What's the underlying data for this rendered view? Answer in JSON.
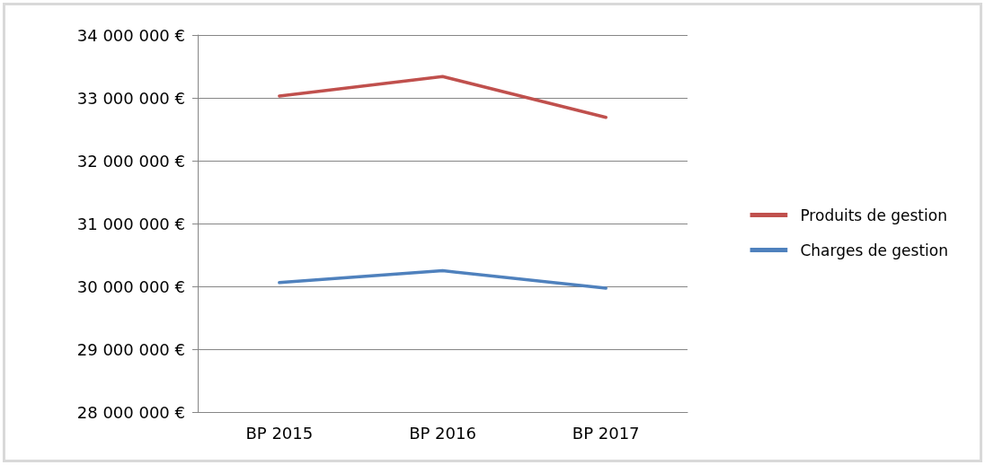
{
  "chart_data": {
    "type": "line",
    "categories": [
      "BP 2015",
      "BP 2016",
      "BP 2017"
    ],
    "series": [
      {
        "name": "Produits de gestion",
        "color": "#c0504d",
        "values": [
          33030000,
          33340000,
          32690000
        ]
      },
      {
        "name": "Charges de gestion",
        "color": "#4f81bd",
        "values": [
          30060000,
          30250000,
          29970000
        ]
      }
    ],
    "ylim": [
      28000000,
      34000000
    ],
    "yticks": [
      {
        "value": 28000000,
        "label": "28 000 000 €"
      },
      {
        "value": 29000000,
        "label": "29 000 000 €"
      },
      {
        "value": 30000000,
        "label": "30 000 000 €"
      },
      {
        "value": 31000000,
        "label": "31 000 000 €"
      },
      {
        "value": 32000000,
        "label": "32 000 000 €"
      },
      {
        "value": 33000000,
        "label": "33 000 000 €"
      },
      {
        "value": 34000000,
        "label": "34 000 000 €"
      }
    ],
    "grid": "y",
    "legend": "right",
    "marker": "none",
    "line_style": "solid"
  }
}
